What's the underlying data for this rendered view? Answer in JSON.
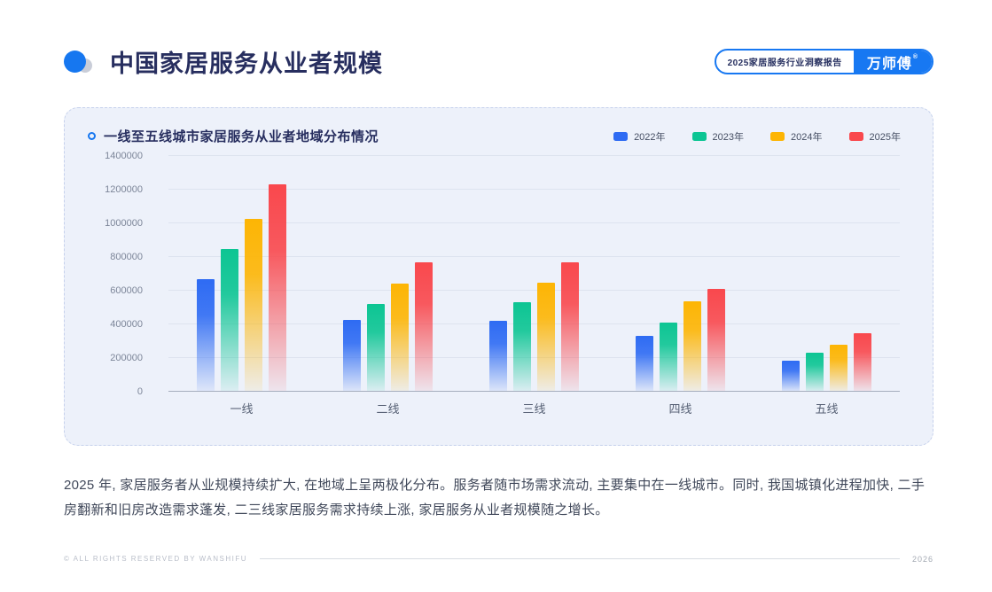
{
  "header": {
    "title": "中国家居服务从业者规模",
    "badge_report": "2025家居服务行业洞察报告",
    "badge_brand": "万师傅",
    "badge_reg": "®"
  },
  "panel": {
    "title": "一线至五线城市家居服务从业者地域分布情况"
  },
  "chart_data": {
    "type": "bar",
    "title": "一线至五线城市家居服务从业者地域分布情况",
    "categories": [
      "一线",
      "二线",
      "三线",
      "四线",
      "五线"
    ],
    "series": [
      {
        "name": "2022年",
        "color": "#2e6bf3",
        "values": [
          670000,
          425000,
          420000,
          330000,
          185000
        ]
      },
      {
        "name": "2023年",
        "color": "#0cc593",
        "values": [
          845000,
          520000,
          530000,
          410000,
          230000
        ]
      },
      {
        "name": "2024年",
        "color": "#fdb504",
        "values": [
          1025000,
          640000,
          645000,
          535000,
          280000
        ]
      },
      {
        "name": "2025年",
        "color": "#f9484d",
        "values": [
          1230000,
          770000,
          770000,
          610000,
          345000
        ]
      }
    ],
    "xlabel": "",
    "ylabel": "",
    "ylim": [
      0,
      1400000
    ],
    "ytick_step": 200000,
    "yticks": [
      0,
      200000,
      400000,
      600000,
      800000,
      1000000,
      1200000,
      1400000
    ],
    "grid": true,
    "legend_position": "top-right"
  },
  "body_text": "2025 年, 家居服务者从业规模持续扩大, 在地域上呈两极化分布。服务者随市场需求流动, 主要集中在一线城市。同时, 我国城镇化进程加快, 二手房翻新和旧房改造需求蓬发, 二三线家居服务需求持续上涨, 家居服务从业者规模随之增长。",
  "footer": {
    "copyright": "© ALL RIGHTS RESERVED BY WANSHIFU",
    "page": "2026"
  }
}
